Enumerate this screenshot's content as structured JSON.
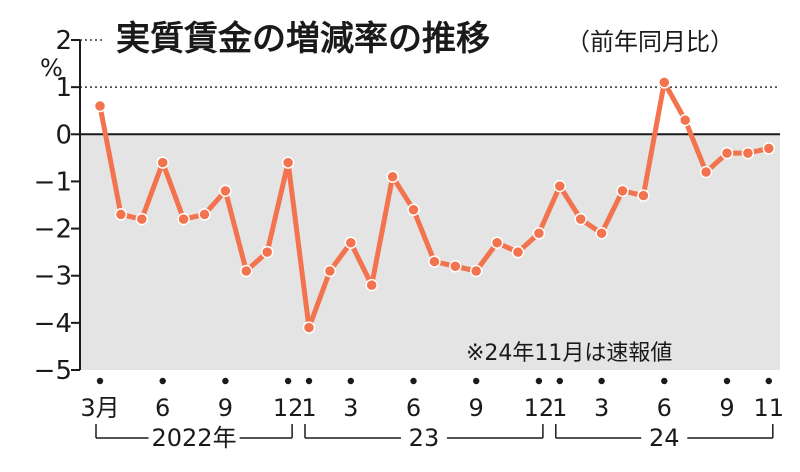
{
  "chart_data": {
    "type": "line",
    "title": "実質賃金の増減率の推移",
    "subtitle": "（前年同月比）",
    "unit": "%",
    "note": "※24年11月は速報値",
    "ylim": [
      -5,
      2
    ],
    "yticks": [
      2,
      1,
      0,
      -1,
      -2,
      -3,
      -4,
      -5
    ],
    "ytick_labels": [
      "2",
      "1",
      "0",
      "−1",
      "−2",
      "−3",
      "−4",
      "−5"
    ],
    "x": [
      "2022-03",
      "2022-04",
      "2022-05",
      "2022-06",
      "2022-07",
      "2022-08",
      "2022-09",
      "2022-10",
      "2022-11",
      "2022-12",
      "2023-01",
      "2023-02",
      "2023-03",
      "2023-04",
      "2023-05",
      "2023-06",
      "2023-07",
      "2023-08",
      "2023-09",
      "2023-10",
      "2023-11",
      "2023-12",
      "2024-01",
      "2024-02",
      "2024-03",
      "2024-04",
      "2024-05",
      "2024-06",
      "2024-07",
      "2024-08",
      "2024-09",
      "2024-10",
      "2024-11"
    ],
    "x_tick_labels": [
      {
        "month": "2022-03",
        "label": "3月"
      },
      {
        "month": "2022-06",
        "label": "6"
      },
      {
        "month": "2022-09",
        "label": "9"
      },
      {
        "month": "2022-12",
        "label": "12"
      },
      {
        "month": "2023-01",
        "label": "1"
      },
      {
        "month": "2023-03",
        "label": "3"
      },
      {
        "month": "2023-06",
        "label": "6"
      },
      {
        "month": "2023-09",
        "label": "9"
      },
      {
        "month": "2023-12",
        "label": "12"
      },
      {
        "month": "2024-01",
        "label": "1"
      },
      {
        "month": "2024-03",
        "label": "3"
      },
      {
        "month": "2024-06",
        "label": "6"
      },
      {
        "month": "2024-09",
        "label": "9"
      },
      {
        "month": "2024-11",
        "label": "11"
      }
    ],
    "x_dot_months": [
      "2022-03",
      "2022-06",
      "2022-09",
      "2022-12",
      "2023-01",
      "2023-03",
      "2023-06",
      "2023-09",
      "2023-12",
      "2024-01",
      "2024-03",
      "2024-06",
      "2024-09",
      "2024-11"
    ],
    "year_labels": [
      {
        "label": "2022年",
        "from": "2022-03",
        "to": "2022-12"
      },
      {
        "label": "23",
        "from": "2023-01",
        "to": "2023-12"
      },
      {
        "label": "24",
        "from": "2024-01",
        "to": "2024-11"
      }
    ],
    "series": [
      {
        "values": [
          0.6,
          -1.7,
          -1.8,
          -0.6,
          -1.8,
          -1.7,
          -1.2,
          -2.9,
          -2.5,
          -0.6,
          -4.1,
          -2.9,
          -2.3,
          -3.2,
          -0.9,
          -1.6,
          -2.7,
          -2.8,
          -2.9,
          -2.3,
          -2.5,
          -2.1,
          -1.1,
          -1.8,
          -2.1,
          -1.2,
          -1.3,
          1.1,
          0.3,
          -0.8,
          -0.4,
          -0.4,
          -0.3
        ],
        "color": "#f2734e"
      }
    ],
    "reference_lines": [
      1,
      2
    ],
    "shaded_region": "below zero",
    "colors": {
      "line": "#f2734e",
      "shade": "#e4e4e4",
      "axis": "#1a1a1a"
    }
  }
}
